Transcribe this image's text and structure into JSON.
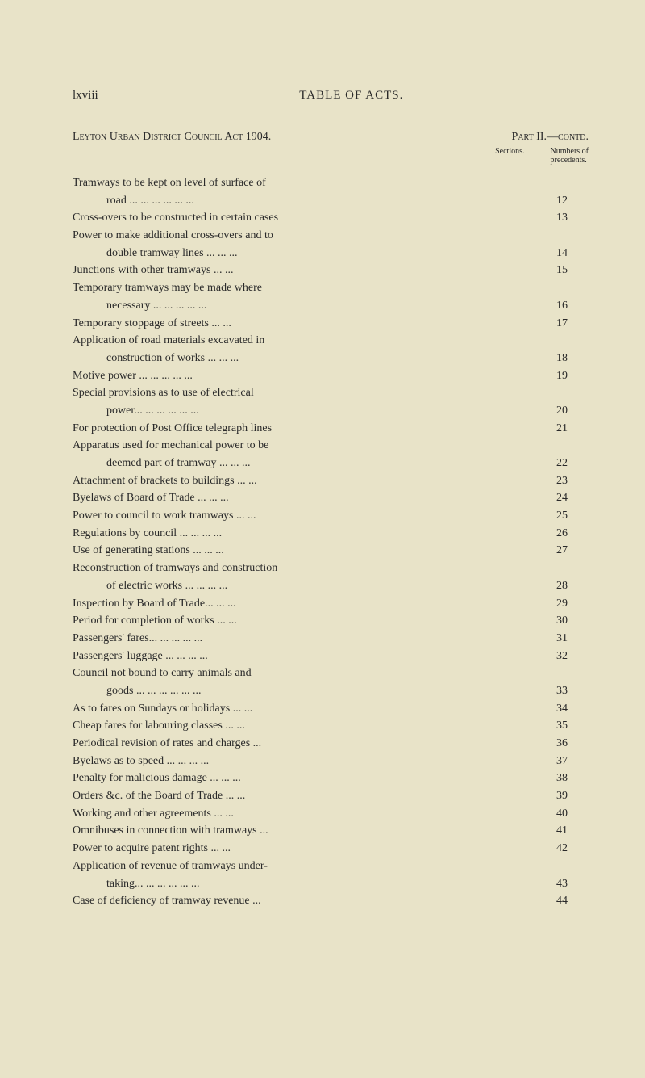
{
  "page": {
    "roman_numeral": "lxviii",
    "title": "TABLE OF ACTS."
  },
  "act": {
    "name": "Leyton Urban District Council Act 1904.",
    "part": "Part II.—contd."
  },
  "columns": {
    "sections": "Sections.",
    "precedents_line1": "Numbers of",
    "precedents_line2": "precedents."
  },
  "entries": [
    {
      "text": "Tramways to be kept on level of surface of",
      "section": "",
      "continuation": true
    },
    {
      "text": "road ...   ...   ...   ...   ...   ...",
      "section": "12",
      "indent": true
    },
    {
      "text": "Cross-overs to be constructed in certain cases",
      "section": "13"
    },
    {
      "text": "Power to make additional cross-overs and to",
      "section": "",
      "continuation": true
    },
    {
      "text": "double tramway lines   ...   ...   ...",
      "section": "14",
      "indent": true
    },
    {
      "text": "Junctions with other tramways   ...   ...",
      "section": "15"
    },
    {
      "text": "Temporary tramways may be made where",
      "section": "",
      "continuation": true
    },
    {
      "text": "necessary   ...   ...   ...   ...   ...",
      "section": "16",
      "indent": true
    },
    {
      "text": "Temporary stoppage of streets   ...   ...",
      "section": "17"
    },
    {
      "text": "Application of road materials excavated in",
      "section": "",
      "continuation": true
    },
    {
      "text": "construction of works   ...   ...   ...",
      "section": "18",
      "indent": true
    },
    {
      "text": "Motive power   ...   ...   ...   ...   ...",
      "section": "19"
    },
    {
      "text": "Special provisions as to use of electrical",
      "section": "",
      "continuation": true
    },
    {
      "text": "power...   ...   ...   ...   ...   ...",
      "section": "20",
      "indent": true
    },
    {
      "text": "For protection of Post Office telegraph lines",
      "section": "21"
    },
    {
      "text": "Apparatus used for mechanical power to be",
      "section": "",
      "continuation": true
    },
    {
      "text": "deemed part of tramway ...   ...   ...",
      "section": "22",
      "indent": true
    },
    {
      "text": "Attachment of brackets to buildings ...   ...",
      "section": "23"
    },
    {
      "text": "Byelaws of Board of Trade   ...   ...   ...",
      "section": "24"
    },
    {
      "text": "Power to council to work tramways ...   ...",
      "section": "25"
    },
    {
      "text": "Regulations by council ...   ...   ...   ...",
      "section": "26"
    },
    {
      "text": "Use of generating stations   ...   ...   ...",
      "section": "27"
    },
    {
      "text": "Reconstruction of tramways and construction",
      "section": "",
      "continuation": true
    },
    {
      "text": "of electric works   ...   ...   ...   ...",
      "section": "28",
      "indent": true
    },
    {
      "text": "Inspection by Board of Trade...   ...   ...",
      "section": "29"
    },
    {
      "text": "Period for completion of works   ...   ...",
      "section": "30"
    },
    {
      "text": "Passengers' fares...   ...   ...   ...   ...",
      "section": "31"
    },
    {
      "text": "Passengers' luggage   ...   ...   ...   ...",
      "section": "32"
    },
    {
      "text": "Council not bound to carry animals and",
      "section": "",
      "continuation": true
    },
    {
      "text": "goods ...   ...   ...   ...   ...   ...",
      "section": "33",
      "indent": true
    },
    {
      "text": "As to fares on Sundays or holidays   ...   ...",
      "section": "34"
    },
    {
      "text": "Cheap fares for labouring classes   ...   ...",
      "section": "35"
    },
    {
      "text": "Periodical revision of rates and charges   ...",
      "section": "36"
    },
    {
      "text": "Byelaws as to speed   ...   ...   ...   ...",
      "section": "37"
    },
    {
      "text": "Penalty for malicious damage ...   ...   ...",
      "section": "38"
    },
    {
      "text": "Orders &c. of the Board of Trade   ...   ...",
      "section": "39"
    },
    {
      "text": "Working and other agreements   ...   ...",
      "section": "40"
    },
    {
      "text": "Omnibuses in connection with tramways   ...",
      "section": "41"
    },
    {
      "text": "Power to acquire patent rights   ...   ...",
      "section": "42"
    },
    {
      "text": "Application of revenue of tramways under-",
      "section": "",
      "continuation": true
    },
    {
      "text": "taking...   ...   ...   ...   ...   ...",
      "section": "43",
      "indent": true
    },
    {
      "text": "Case of deficiency of tramway revenue   ...",
      "section": "44"
    }
  ],
  "colors": {
    "background": "#e8e3c8",
    "text": "#2a2a2a"
  }
}
